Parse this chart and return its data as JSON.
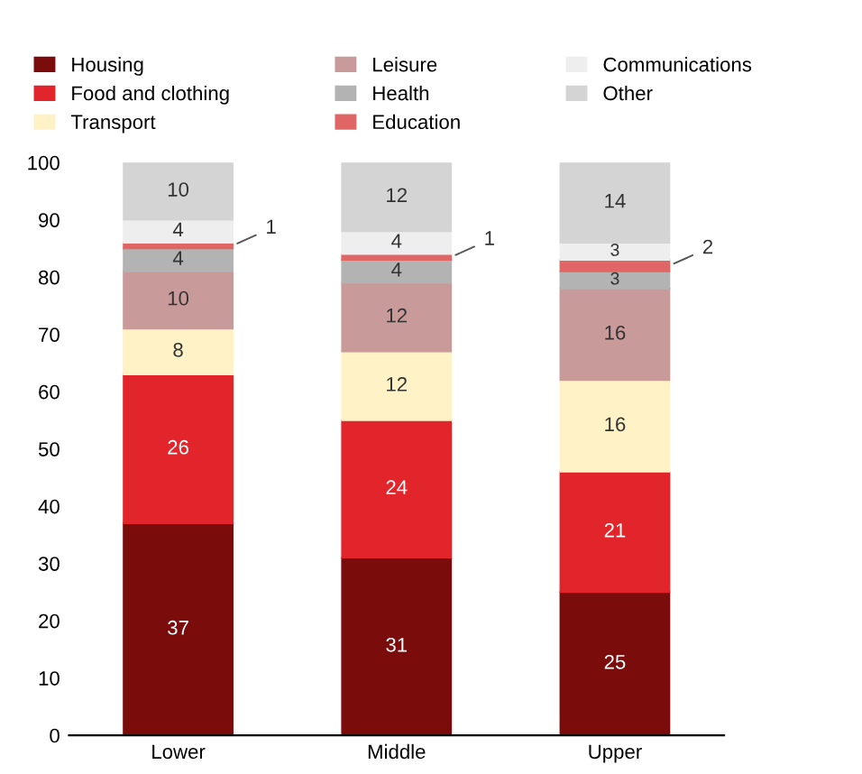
{
  "chart_data": {
    "type": "bar",
    "stacked": true,
    "categories": [
      "Lower",
      "Middle",
      "Upper"
    ],
    "series": [
      {
        "name": "Housing",
        "color": "#7b0c0c",
        "values": [
          37,
          31,
          25
        ]
      },
      {
        "name": "Food and clothing",
        "color": "#e2242b",
        "values": [
          26,
          24,
          21
        ]
      },
      {
        "name": "Transport",
        "color": "#fff2c6",
        "values": [
          8,
          12,
          16
        ]
      },
      {
        "name": "Leisure",
        "color": "#c99a9a",
        "values": [
          10,
          12,
          16
        ]
      },
      {
        "name": "Health",
        "color": "#b3b3b3",
        "values": [
          4,
          4,
          3
        ]
      },
      {
        "name": "Education",
        "color": "#e06666",
        "values": [
          1,
          1,
          2
        ]
      },
      {
        "name": "Communications",
        "color": "#eeeeee",
        "values": [
          4,
          4,
          3
        ]
      },
      {
        "name": "Other",
        "color": "#d4d4d4",
        "values": [
          10,
          12,
          14
        ]
      }
    ],
    "ylim": [
      0,
      100
    ],
    "yticks": [
      0,
      10,
      20,
      30,
      40,
      50,
      60,
      70,
      80,
      90,
      100
    ],
    "data_labels": true,
    "legend": "top",
    "grid": false
  }
}
